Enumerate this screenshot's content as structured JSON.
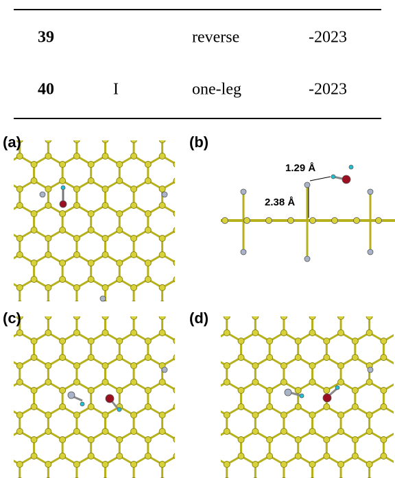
{
  "table": {
    "rows": [
      {
        "number": "39",
        "method": "reverse",
        "value": "-2023"
      },
      {
        "number": "40",
        "label": "I",
        "method": "one-leg",
        "value": "-2023"
      }
    ]
  },
  "figure": {
    "panels": [
      {
        "label": "(a)"
      },
      {
        "label": "(b)",
        "annotations": [
          "1.29 Å",
          "2.38 Å"
        ]
      },
      {
        "label": "(c)"
      },
      {
        "label": "(d)"
      }
    ]
  }
}
